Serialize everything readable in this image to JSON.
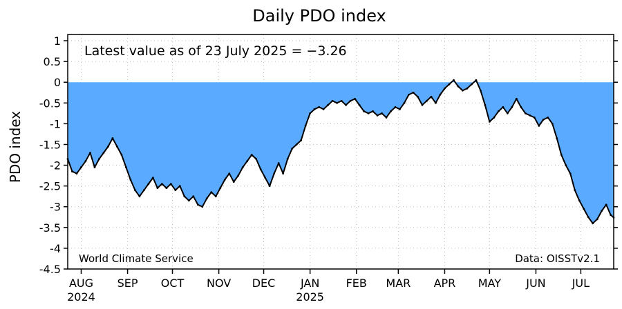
{
  "chart_data": {
    "type": "area",
    "title": "Daily PDO index",
    "ylabel": "PDO index",
    "xlabel": "",
    "annotation": "Latest value as of 23 July 2025 = −3.26",
    "source_left": "World Climate Service",
    "source_right": "Data: OISSTv2.1",
    "ylim": [
      -4.5,
      1.15
    ],
    "yticks": [
      1,
      0.5,
      0,
      -0.5,
      -1,
      -1.5,
      -2,
      -2.5,
      -3,
      -3.5,
      -4,
      -4.5
    ],
    "ytick_labels": [
      "1",
      "0.5",
      "0",
      "-0.5",
      "-1",
      "-1.5",
      "-2",
      "-2.5",
      "-3",
      "-3.5",
      "-4",
      "-4.5"
    ],
    "xlim": [
      "2024-07-23",
      "2025-07-23"
    ],
    "months": [
      {
        "label": "AUG",
        "year": "2024",
        "date": "2024-08-01"
      },
      {
        "label": "SEP",
        "year": "",
        "date": "2024-09-01"
      },
      {
        "label": "OCT",
        "year": "",
        "date": "2024-10-01"
      },
      {
        "label": "NOV",
        "year": "",
        "date": "2024-11-01"
      },
      {
        "label": "DEC",
        "year": "",
        "date": "2024-12-01"
      },
      {
        "label": "JAN",
        "year": "2025",
        "date": "2025-01-01"
      },
      {
        "label": "FEB",
        "year": "",
        "date": "2025-02-01"
      },
      {
        "label": "MAR",
        "year": "",
        "date": "2025-03-01"
      },
      {
        "label": "APR",
        "year": "",
        "date": "2025-04-01"
      },
      {
        "label": "MAY",
        "year": "",
        "date": "2025-05-01"
      },
      {
        "label": "JUN",
        "year": "",
        "date": "2025-06-01"
      },
      {
        "label": "JUL",
        "year": "",
        "date": "2025-07-01"
      }
    ],
    "grid": true,
    "fill_color": "#5aabff",
    "line_color": "#000000",
    "series": [
      {
        "points": [
          [
            "2024-07-23",
            -1.85
          ],
          [
            "2024-07-26",
            -2.15
          ],
          [
            "2024-07-29",
            -2.2
          ],
          [
            "2024-08-01",
            -2.05
          ],
          [
            "2024-08-04",
            -1.9
          ],
          [
            "2024-08-07",
            -1.7
          ],
          [
            "2024-08-10",
            -2.05
          ],
          [
            "2024-08-13",
            -1.85
          ],
          [
            "2024-08-16",
            -1.7
          ],
          [
            "2024-08-19",
            -1.55
          ],
          [
            "2024-08-22",
            -1.35
          ],
          [
            "2024-08-25",
            -1.55
          ],
          [
            "2024-08-28",
            -1.75
          ],
          [
            "2024-08-31",
            -2.05
          ],
          [
            "2024-09-03",
            -2.35
          ],
          [
            "2024-09-06",
            -2.6
          ],
          [
            "2024-09-09",
            -2.75
          ],
          [
            "2024-09-12",
            -2.6
          ],
          [
            "2024-09-15",
            -2.45
          ],
          [
            "2024-09-18",
            -2.3
          ],
          [
            "2024-09-21",
            -2.55
          ],
          [
            "2024-09-24",
            -2.45
          ],
          [
            "2024-09-27",
            -2.55
          ],
          [
            "2024-09-30",
            -2.45
          ],
          [
            "2024-10-03",
            -2.6
          ],
          [
            "2024-10-06",
            -2.5
          ],
          [
            "2024-10-09",
            -2.75
          ],
          [
            "2024-10-12",
            -2.85
          ],
          [
            "2024-10-15",
            -2.75
          ],
          [
            "2024-10-18",
            -2.95
          ],
          [
            "2024-10-21",
            -3.0
          ],
          [
            "2024-10-24",
            -2.8
          ],
          [
            "2024-10-27",
            -2.65
          ],
          [
            "2024-10-30",
            -2.75
          ],
          [
            "2024-11-02",
            -2.55
          ],
          [
            "2024-11-05",
            -2.35
          ],
          [
            "2024-11-08",
            -2.2
          ],
          [
            "2024-11-11",
            -2.4
          ],
          [
            "2024-11-14",
            -2.25
          ],
          [
            "2024-11-17",
            -2.05
          ],
          [
            "2024-11-20",
            -1.9
          ],
          [
            "2024-11-23",
            -1.75
          ],
          [
            "2024-11-26",
            -1.85
          ],
          [
            "2024-11-29",
            -2.1
          ],
          [
            "2024-12-02",
            -2.3
          ],
          [
            "2024-12-05",
            -2.5
          ],
          [
            "2024-12-08",
            -2.2
          ],
          [
            "2024-12-11",
            -1.95
          ],
          [
            "2024-12-14",
            -2.2
          ],
          [
            "2024-12-17",
            -1.85
          ],
          [
            "2024-12-20",
            -1.6
          ],
          [
            "2024-12-23",
            -1.5
          ],
          [
            "2024-12-26",
            -1.4
          ],
          [
            "2024-12-29",
            -1.05
          ],
          [
            "2025-01-01",
            -0.75
          ],
          [
            "2025-01-04",
            -0.65
          ],
          [
            "2025-01-07",
            -0.6
          ],
          [
            "2025-01-10",
            -0.65
          ],
          [
            "2025-01-13",
            -0.55
          ],
          [
            "2025-01-16",
            -0.45
          ],
          [
            "2025-01-19",
            -0.5
          ],
          [
            "2025-01-22",
            -0.45
          ],
          [
            "2025-01-25",
            -0.55
          ],
          [
            "2025-01-28",
            -0.45
          ],
          [
            "2025-01-31",
            -0.4
          ],
          [
            "2025-02-03",
            -0.55
          ],
          [
            "2025-02-06",
            -0.7
          ],
          [
            "2025-02-09",
            -0.75
          ],
          [
            "2025-02-12",
            -0.7
          ],
          [
            "2025-02-15",
            -0.8
          ],
          [
            "2025-02-18",
            -0.75
          ],
          [
            "2025-02-21",
            -0.85
          ],
          [
            "2025-02-24",
            -0.7
          ],
          [
            "2025-02-27",
            -0.6
          ],
          [
            "2025-03-02",
            -0.65
          ],
          [
            "2025-03-05",
            -0.5
          ],
          [
            "2025-03-08",
            -0.3
          ],
          [
            "2025-03-11",
            -0.25
          ],
          [
            "2025-03-14",
            -0.35
          ],
          [
            "2025-03-17",
            -0.55
          ],
          [
            "2025-03-20",
            -0.45
          ],
          [
            "2025-03-23",
            -0.35
          ],
          [
            "2025-03-26",
            -0.5
          ],
          [
            "2025-03-29",
            -0.3
          ],
          [
            "2025-04-01",
            -0.15
          ],
          [
            "2025-04-04",
            -0.05
          ],
          [
            "2025-04-07",
            0.05
          ],
          [
            "2025-04-10",
            -0.1
          ],
          [
            "2025-04-13",
            -0.2
          ],
          [
            "2025-04-16",
            -0.15
          ],
          [
            "2025-04-19",
            -0.05
          ],
          [
            "2025-04-22",
            0.05
          ],
          [
            "2025-04-25",
            -0.2
          ],
          [
            "2025-04-28",
            -0.55
          ],
          [
            "2025-05-01",
            -0.95
          ],
          [
            "2025-05-04",
            -0.85
          ],
          [
            "2025-05-07",
            -0.7
          ],
          [
            "2025-05-10",
            -0.6
          ],
          [
            "2025-05-13",
            -0.75
          ],
          [
            "2025-05-16",
            -0.6
          ],
          [
            "2025-05-19",
            -0.4
          ],
          [
            "2025-05-22",
            -0.6
          ],
          [
            "2025-05-25",
            -0.75
          ],
          [
            "2025-05-28",
            -0.8
          ],
          [
            "2025-05-31",
            -0.85
          ],
          [
            "2025-06-03",
            -1.05
          ],
          [
            "2025-06-06",
            -0.9
          ],
          [
            "2025-06-09",
            -0.85
          ],
          [
            "2025-06-12",
            -1.0
          ],
          [
            "2025-06-15",
            -1.35
          ],
          [
            "2025-06-18",
            -1.75
          ],
          [
            "2025-06-21",
            -2.0
          ],
          [
            "2025-06-24",
            -2.2
          ],
          [
            "2025-06-27",
            -2.6
          ],
          [
            "2025-06-30",
            -2.85
          ],
          [
            "2025-07-03",
            -3.05
          ],
          [
            "2025-07-06",
            -3.25
          ],
          [
            "2025-07-09",
            -3.4
          ],
          [
            "2025-07-12",
            -3.3
          ],
          [
            "2025-07-15",
            -3.1
          ],
          [
            "2025-07-18",
            -2.95
          ],
          [
            "2025-07-21",
            -3.2
          ],
          [
            "2025-07-23",
            -3.26
          ]
        ]
      }
    ]
  }
}
